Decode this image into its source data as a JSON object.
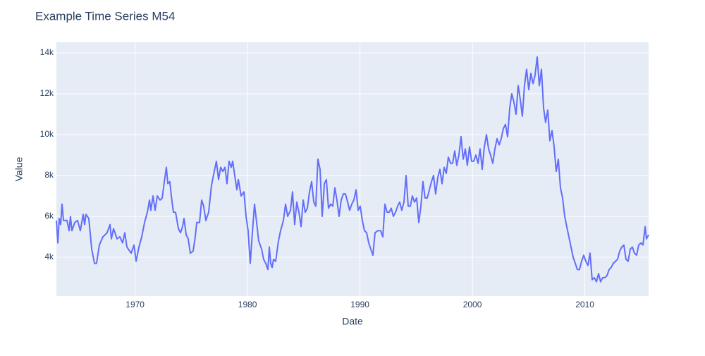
{
  "chart_data": {
    "type": "line",
    "title": "Example Time Series M54",
    "x_label": "Date",
    "y_label": "Value",
    "color": "#636efa",
    "grid": true,
    "xlim": [
      1963,
      2015.67
    ],
    "xticks": [
      1970,
      1980,
      1990,
      2000,
      2010
    ],
    "ylim": [
      2100,
      14520
    ],
    "yticks": [
      {
        "value": 4000,
        "label": "4k"
      },
      {
        "value": 6000,
        "label": "6k"
      },
      {
        "value": 8000,
        "label": "8k"
      },
      {
        "value": 10000,
        "label": "10k"
      },
      {
        "value": 12000,
        "label": "12k"
      },
      {
        "value": 14000,
        "label": "14k"
      }
    ],
    "x": [
      1963.0,
      1963.13,
      1963.25,
      1963.38,
      1963.5,
      1963.63,
      1963.94,
      1964.13,
      1964.25,
      1964.38,
      1964.63,
      1964.88,
      1965.13,
      1965.38,
      1965.51,
      1965.63,
      1965.88,
      1966.14,
      1966.39,
      1966.57,
      1966.82,
      1967.14,
      1967.51,
      1967.77,
      1967.89,
      1968.08,
      1968.39,
      1968.64,
      1968.89,
      1969.08,
      1969.27,
      1969.65,
      1969.9,
      1970.09,
      1970.34,
      1970.59,
      1970.84,
      1971.09,
      1971.28,
      1971.4,
      1971.59,
      1971.78,
      1971.97,
      1972.22,
      1972.41,
      1972.6,
      1972.78,
      1972.91,
      1973.09,
      1973.22,
      1973.41,
      1973.6,
      1973.85,
      1974.04,
      1974.22,
      1974.35,
      1974.54,
      1974.72,
      1974.91,
      1975.16,
      1975.35,
      1975.48,
      1975.73,
      1975.92,
      1976.1,
      1976.29,
      1976.54,
      1976.79,
      1977.04,
      1977.23,
      1977.42,
      1977.61,
      1977.8,
      1977.99,
      1978.17,
      1978.36,
      1978.55,
      1978.68,
      1978.86,
      1979.05,
      1979.18,
      1979.43,
      1979.68,
      1979.87,
      1980.05,
      1980.24,
      1980.43,
      1980.62,
      1980.81,
      1980.99,
      1981.25,
      1981.43,
      1981.62,
      1981.81,
      1981.94,
      1982.06,
      1982.19,
      1982.31,
      1982.5,
      1982.75,
      1982.94,
      1983.19,
      1983.38,
      1983.57,
      1983.82,
      1984.0,
      1984.19,
      1984.38,
      1984.57,
      1984.76,
      1984.95,
      1985.13,
      1985.32,
      1985.51,
      1985.7,
      1985.89,
      1986.07,
      1986.26,
      1986.45,
      1986.64,
      1986.83,
      1987.01,
      1987.2,
      1987.39,
      1987.58,
      1987.77,
      1987.95,
      1988.14,
      1988.33,
      1988.52,
      1988.71,
      1988.9,
      1989.08,
      1989.27,
      1989.46,
      1989.65,
      1989.84,
      1990.02,
      1990.21,
      1990.4,
      1990.59,
      1990.78,
      1990.96,
      1991.15,
      1991.34,
      1991.59,
      1991.84,
      1992.03,
      1992.22,
      1992.41,
      1992.59,
      1992.78,
      1992.97,
      1993.16,
      1993.35,
      1993.53,
      1993.72,
      1993.91,
      1994.1,
      1994.29,
      1994.48,
      1994.66,
      1994.85,
      1995.04,
      1995.23,
      1995.42,
      1995.6,
      1995.79,
      1995.98,
      1996.17,
      1996.36,
      1996.54,
      1996.73,
      1996.92,
      1997.11,
      1997.3,
      1997.49,
      1997.67,
      1997.86,
      1998.05,
      1998.24,
      1998.43,
      1998.61,
      1998.8,
      1998.99,
      1999.18,
      1999.37,
      1999.55,
      1999.74,
      1999.93,
      2000.12,
      2000.31,
      2000.5,
      2000.68,
      2000.87,
      2001.06,
      2001.25,
      2001.44,
      2001.62,
      2001.81,
      2002.0,
      2002.19,
      2002.38,
      2002.56,
      2002.75,
      2002.94,
      2003.13,
      2003.32,
      2003.5,
      2003.69,
      2003.88,
      2004.07,
      2004.26,
      2004.44,
      2004.63,
      2004.82,
      2005.01,
      2005.2,
      2005.39,
      2005.57,
      2005.76,
      2005.95,
      2006.14,
      2006.33,
      2006.51,
      2006.7,
      2006.89,
      2007.08,
      2007.27,
      2007.45,
      2007.64,
      2007.83,
      2008.02,
      2008.21,
      2008.39,
      2008.58,
      2008.77,
      2008.96,
      2009.15,
      2009.33,
      2009.52,
      2009.71,
      2009.9,
      2010.09,
      2010.28,
      2010.46,
      2010.65,
      2010.84,
      2011.03,
      2011.22,
      2011.4,
      2011.59,
      2011.78,
      2011.97,
      2012.16,
      2012.34,
      2012.53,
      2012.72,
      2012.91,
      2013.1,
      2013.28,
      2013.47,
      2013.66,
      2013.85,
      2014.04,
      2014.23,
      2014.41,
      2014.6,
      2014.79,
      2014.98,
      2015.17,
      2015.36,
      2015.48,
      2015.67
    ],
    "values": [
      5800,
      4700,
      5900,
      5600,
      6600,
      5800,
      5800,
      5300,
      6000,
      5300,
      5700,
      5800,
      5300,
      6100,
      5600,
      6100,
      5900,
      4400,
      3700,
      3700,
      4600,
      5000,
      5200,
      5600,
      4900,
      5400,
      4900,
      5000,
      4700,
      5200,
      4500,
      4200,
      4600,
      3800,
      4500,
      5000,
      5700,
      6200,
      6800,
      6300,
      7000,
      6300,
      7000,
      6800,
      6900,
      7700,
      8400,
      7600,
      7700,
      7000,
      6200,
      6200,
      5400,
      5200,
      5500,
      5900,
      5100,
      4900,
      4200,
      4300,
      5000,
      5700,
      5700,
      6800,
      6500,
      5800,
      6200,
      7500,
      8200,
      8700,
      7800,
      8400,
      8200,
      8400,
      7600,
      8700,
      8400,
      8700,
      8000,
      7300,
      7800,
      7000,
      7200,
      6000,
      5300,
      3700,
      5200,
      6600,
      5700,
      4800,
      4400,
      3900,
      3700,
      3400,
      4500,
      3700,
      3500,
      3900,
      3800,
      4800,
      5300,
      5800,
      6600,
      6000,
      6300,
      7200,
      5600,
      6700,
      6200,
      5500,
      6800,
      6200,
      6400,
      7200,
      7700,
      6700,
      6500,
      8800,
      8300,
      6000,
      7600,
      7800,
      6400,
      6600,
      6500,
      7400,
      6800,
      6000,
      6800,
      7100,
      7100,
      6700,
      6300,
      6600,
      6800,
      7300,
      6300,
      6500,
      5800,
      5300,
      5200,
      4700,
      4400,
      4100,
      5200,
      5300,
      5300,
      5000,
      6600,
      6200,
      6200,
      6400,
      6000,
      6200,
      6500,
      6700,
      6300,
      6700,
      8000,
      6500,
      6500,
      7000,
      6700,
      6900,
      5700,
      6500,
      7700,
      6900,
      6900,
      7300,
      7700,
      8000,
      7100,
      7900,
      8300,
      7600,
      8400,
      8100,
      8900,
      8600,
      8600,
      9200,
      8500,
      9000,
      9900,
      8800,
      9300,
      8500,
      9400,
      8700,
      8700,
      9000,
      8600,
      9300,
      8300,
      9400,
      10000,
      9300,
      9000,
      8600,
      9300,
      9800,
      9500,
      9800,
      10300,
      10500,
      9900,
      11300,
      12000,
      11600,
      11000,
      12400,
      11700,
      10900,
      12400,
      13200,
      12200,
      13000,
      12500,
      12900,
      13800,
      12400,
      13200,
      11300,
      10600,
      11200,
      9700,
      10200,
      9400,
      8200,
      8800,
      7400,
      6900,
      6000,
      5500,
      5000,
      4500,
      4000,
      3700,
      3400,
      3400,
      3800,
      4100,
      3800,
      3600,
      4200,
      2900,
      3000,
      2800,
      3200,
      2800,
      3000,
      3000,
      3100,
      3400,
      3500,
      3700,
      3800,
      3900,
      4300,
      4500,
      4600,
      3900,
      3800,
      4400,
      4500,
      4200,
      4100,
      4600,
      4700,
      4600,
      5500,
      4900,
      5100
    ]
  }
}
